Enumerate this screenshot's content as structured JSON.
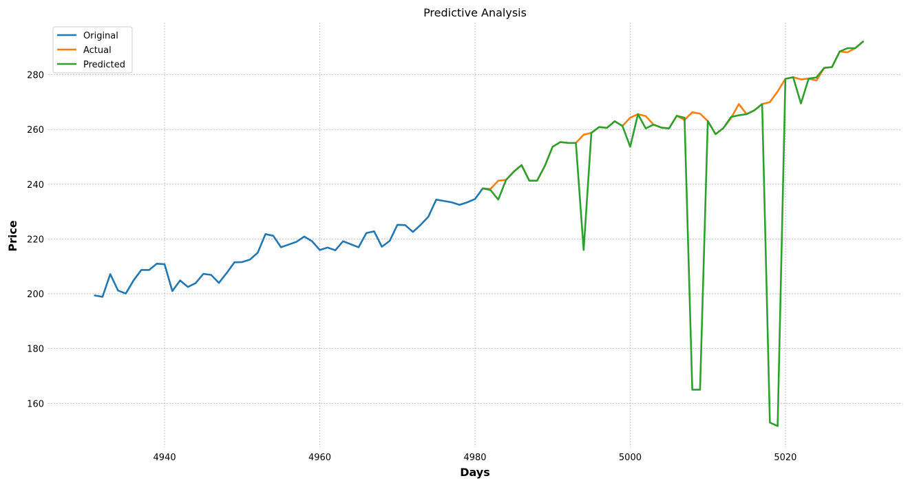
{
  "chart_data": {
    "type": "line",
    "title": "Predictive Analysis",
    "xlabel": "Days",
    "ylabel": "Price",
    "xlim": [
      4925,
      5035
    ],
    "ylim": [
      144,
      299
    ],
    "xticks": [
      4940,
      4960,
      4980,
      5000,
      5020
    ],
    "yticks": [
      160,
      180,
      200,
      220,
      240,
      260,
      280
    ],
    "grid": true,
    "legend_position": "top-left",
    "series": [
      {
        "name": "Original",
        "color": "#1f77b4",
        "x": [
          4931,
          4932,
          4933,
          4934,
          4935,
          4936,
          4937,
          4938,
          4939,
          4940,
          4941,
          4942,
          4943,
          4944,
          4945,
          4946,
          4947,
          4948,
          4949,
          4950,
          4951,
          4952,
          4953,
          4954,
          4955,
          4956,
          4957,
          4958,
          4959,
          4960,
          4961,
          4962,
          4963,
          4964,
          4965,
          4966,
          4967,
          4968,
          4969,
          4970,
          4971,
          4972,
          4973,
          4974,
          4975,
          4976,
          4977,
          4978,
          4979,
          4980,
          4981
        ],
        "values": [
          199.4,
          198.9,
          207.2,
          201.2,
          200.1,
          204.9,
          208.7,
          208.7,
          211.0,
          210.8,
          201.0,
          204.9,
          202.5,
          203.9,
          207.3,
          206.9,
          204.0,
          207.6,
          211.5,
          211.6,
          212.5,
          215.0,
          221.8,
          221.2,
          217.0,
          218.0,
          219.0,
          220.9,
          219.2,
          216.0,
          216.9,
          215.9,
          219.2,
          218.1,
          217.0,
          222.2,
          222.8,
          217.2,
          219.3,
          225.2,
          225.1,
          222.6,
          225.2,
          228.2,
          234.4,
          233.9,
          233.4,
          232.5,
          233.4,
          234.6,
          238.5
        ]
      },
      {
        "name": "Actual",
        "color": "#ff7f0e",
        "x": [
          4981,
          4982,
          4983,
          4984,
          4985,
          4986,
          4987,
          4988,
          4989,
          4990,
          4991,
          4992,
          4993,
          4994,
          4995,
          4996,
          4997,
          4998,
          4999,
          5000,
          5001,
          5002,
          5003,
          5004,
          5005,
          5006,
          5007,
          5008,
          5009,
          5010,
          5011,
          5012,
          5013,
          5014,
          5015,
          5016,
          5017,
          5018,
          5019,
          5020,
          5021,
          5022,
          5023,
          5024,
          5025,
          5026,
          5027,
          5028,
          5029,
          5030
        ],
        "values": [
          238.5,
          238.3,
          241.3,
          241.6,
          244.6,
          247.0,
          241.3,
          241.3,
          246.7,
          253.7,
          255.4,
          255.1,
          255.1,
          258.1,
          258.8,
          260.9,
          260.6,
          263.0,
          261.3,
          264.3,
          265.6,
          264.9,
          261.8,
          260.7,
          260.4,
          265.0,
          263.5,
          266.3,
          265.8,
          263.1,
          258.3,
          260.5,
          264.2,
          269.3,
          265.6,
          267.0,
          269.3,
          270.0,
          273.9,
          278.5,
          279.1,
          278.3,
          278.6,
          277.9,
          282.5,
          282.8,
          288.5,
          288.2,
          289.7,
          292.1
        ]
      },
      {
        "name": "Predicted",
        "color": "#2ca02c",
        "x": [
          4981,
          4982,
          4983,
          4984,
          4985,
          4986,
          4987,
          4988,
          4989,
          4990,
          4991,
          4992,
          4993,
          4994,
          4995,
          4996,
          4997,
          4998,
          4999,
          5000,
          5001,
          5002,
          5003,
          5004,
          5005,
          5006,
          5007,
          5008,
          5009,
          5010,
          5011,
          5012,
          5013,
          5014,
          5015,
          5016,
          5017,
          5018,
          5019,
          5020,
          5021,
          5022,
          5023,
          5024,
          5025,
          5026,
          5027,
          5028,
          5029,
          5030
        ],
        "values": [
          238.5,
          237.9,
          234.4,
          241.6,
          244.6,
          247.0,
          241.3,
          241.3,
          246.7,
          253.7,
          255.4,
          255.1,
          255.1,
          216.0,
          258.8,
          260.9,
          260.6,
          263.0,
          261.3,
          253.7,
          265.6,
          260.4,
          261.8,
          260.7,
          260.4,
          265.0,
          264.3,
          165.0,
          165.0,
          263.1,
          258.3,
          260.5,
          264.6,
          265.2,
          265.6,
          267.0,
          269.3,
          153.0,
          151.7,
          278.5,
          279.1,
          269.5,
          278.6,
          279.0,
          282.5,
          282.8,
          288.5,
          289.7,
          289.7,
          292.1
        ]
      }
    ]
  }
}
